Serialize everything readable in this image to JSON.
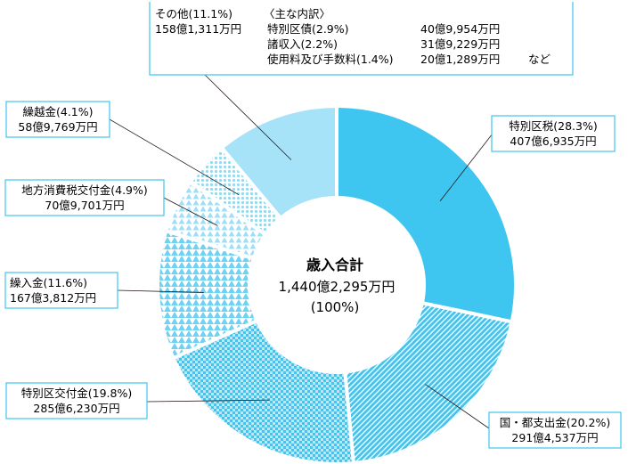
{
  "chart_data": {
    "type": "pie",
    "variant": "donut",
    "slices": [
      {
        "label": "特別区税(28.3%)",
        "amount": "407億6,935万円",
        "percent": 28.3,
        "pattern": "solid",
        "color": "#3ec6f0"
      },
      {
        "label": "国・都支出金(20.2%)",
        "amount": "291億4,537万円",
        "percent": 20.2,
        "pattern": "diagonal",
        "color": "#3ec6f0"
      },
      {
        "label": "特別区交付金(19.8%)",
        "amount": "285億6,230万円",
        "percent": 19.8,
        "pattern": "checker",
        "color": "#3ec6f0"
      },
      {
        "label": "繰入金(11.6%)",
        "amount": "167億3,812万円",
        "percent": 11.6,
        "pattern": "triangles",
        "color": "#6fd2f3"
      },
      {
        "label": "地方消費税交付金(4.9%)",
        "amount": "70億9,701万円",
        "percent": 4.9,
        "pattern": "light-triangles",
        "color": "#8fdcf5"
      },
      {
        "label": "繰越金(4.1%)",
        "amount": "58億9,769万円",
        "percent": 4.1,
        "pattern": "dots",
        "color": "#8fdcf5"
      },
      {
        "label": "その他(11.1%)",
        "amount": "158億1,311万円",
        "percent": 11.1,
        "pattern": "pale-solid",
        "color": "#a6e3f8"
      }
    ],
    "center": {
      "title": "歳入合計",
      "total": "1,440億2,295万円",
      "percent": "(100%)"
    },
    "other_breakdown": {
      "heading": "〈主な内訳〉",
      "items": [
        {
          "label": "特別区債(2.9%)",
          "amount": "40億9,954万円"
        },
        {
          "label": "諸収入(2.2%)",
          "amount": "31億9,229万円"
        },
        {
          "label": "使用料及び手数料(1.4%)",
          "amount": "20億1,289万円"
        }
      ],
      "suffix": "など"
    }
  }
}
